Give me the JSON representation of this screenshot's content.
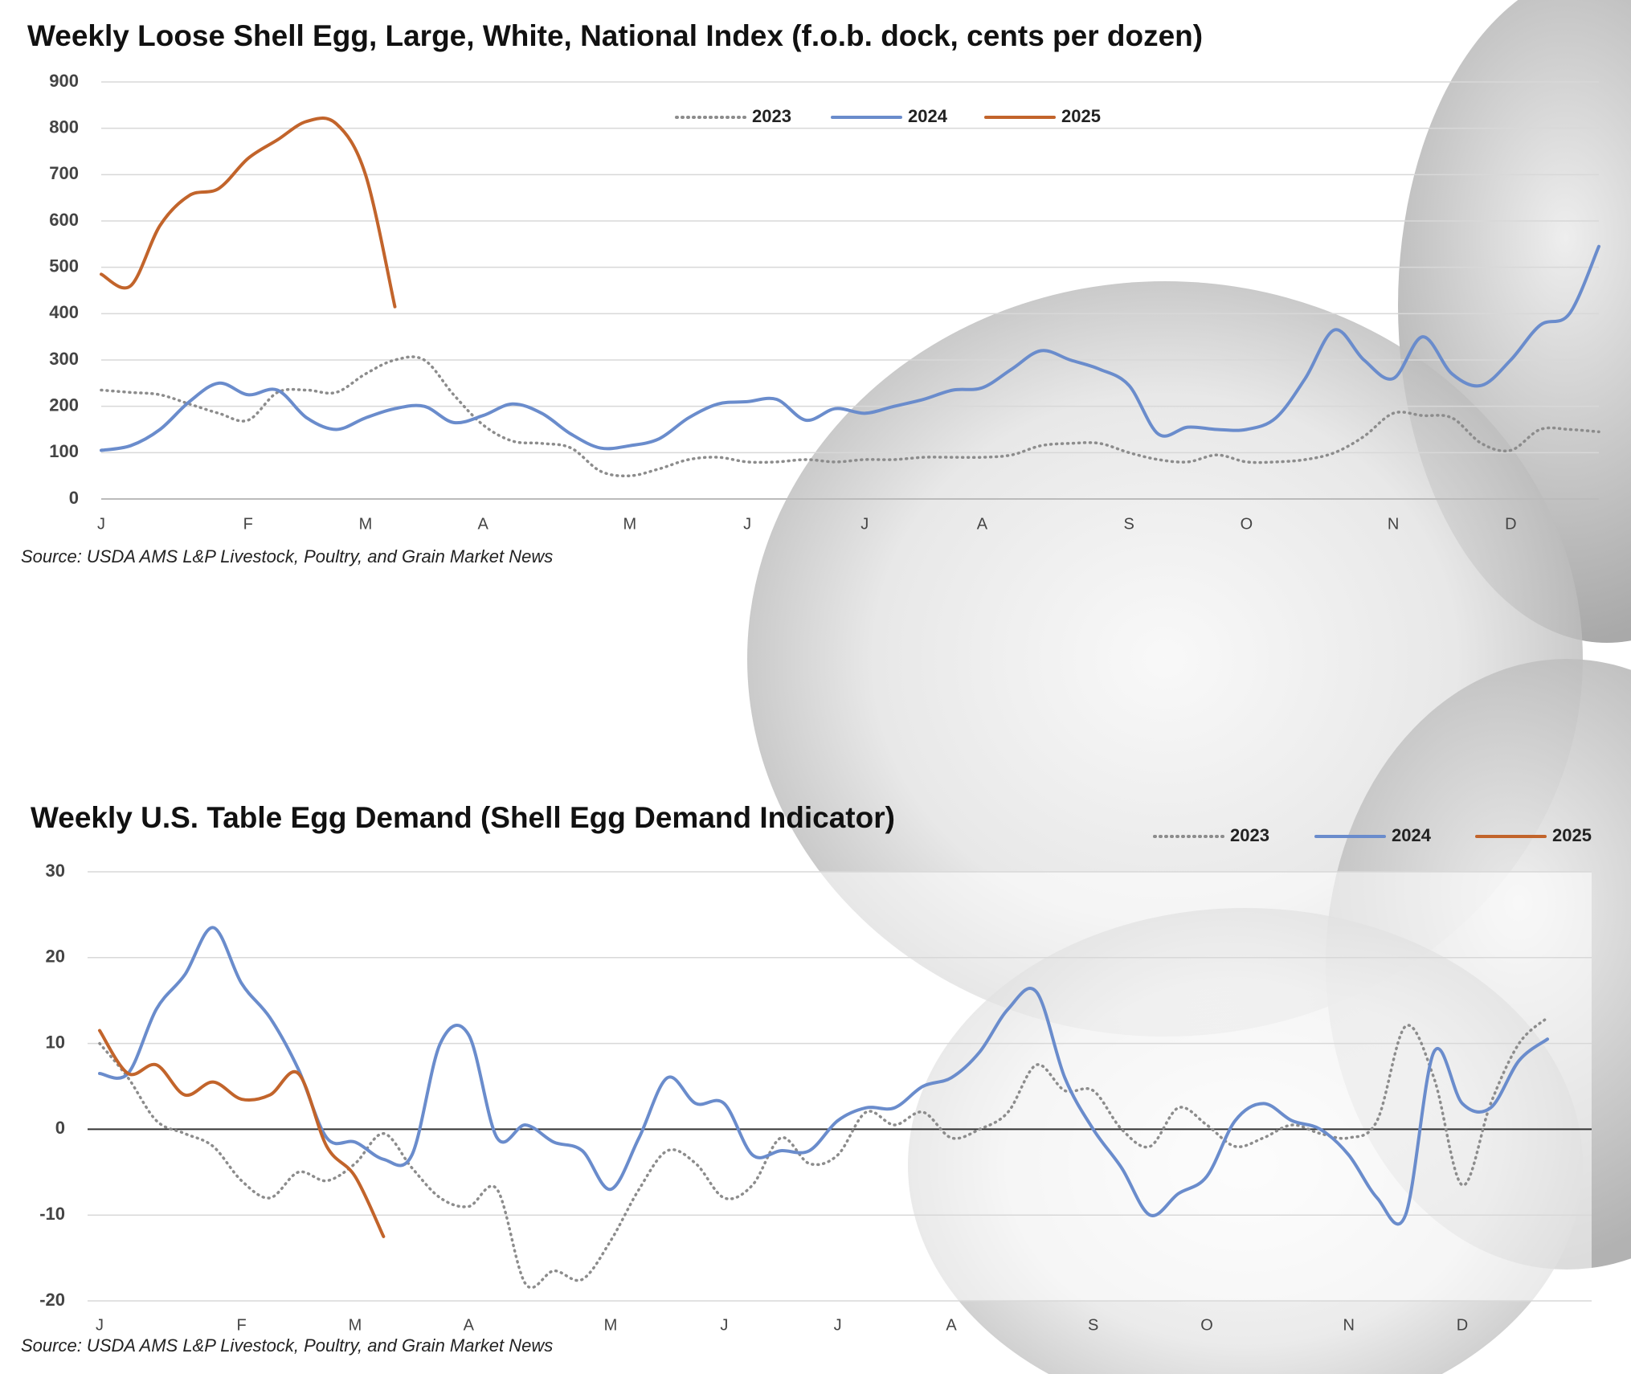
{
  "chart_data": [
    {
      "type": "line",
      "title": "Weekly Loose Shell Egg, Large, White, National Index (f.o.b. dock, cents per dozen)",
      "source": "Source: USDA AMS L&P Livestock, Poultry, and Grain Market News",
      "categories": [
        "J",
        null,
        null,
        null,
        null,
        "F",
        null,
        null,
        null,
        "M",
        null,
        null,
        null,
        "A",
        null,
        null,
        null,
        null,
        "M",
        null,
        null,
        null,
        "J",
        null,
        null,
        null,
        "J",
        null,
        null,
        null,
        "A",
        null,
        null,
        null,
        null,
        "S",
        null,
        null,
        null,
        "O",
        null,
        null,
        null,
        null,
        "N",
        null,
        null,
        null,
        "D",
        null,
        null,
        null
      ],
      "ylim": [
        0,
        900
      ],
      "yticks": [
        0,
        100,
        200,
        300,
        400,
        500,
        600,
        700,
        800,
        900
      ],
      "grid": true,
      "series": [
        {
          "name": "2023",
          "color": "#8c8c8c",
          "line_style": "dotted",
          "values": [
            235,
            230,
            225,
            205,
            185,
            170,
            230,
            235,
            230,
            270,
            300,
            300,
            225,
            160,
            125,
            120,
            110,
            60,
            50,
            65,
            85,
            90,
            80,
            80,
            85,
            80,
            85,
            85,
            90,
            90,
            90,
            95,
            115,
            120,
            120,
            100,
            85,
            80,
            95,
            80,
            80,
            85,
            100,
            135,
            185,
            180,
            175,
            120,
            105,
            150,
            150,
            145
          ]
        },
        {
          "name": "2024",
          "color": "#6a8ccc",
          "line_style": "solid",
          "values": [
            105,
            115,
            150,
            210,
            250,
            225,
            235,
            175,
            150,
            175,
            195,
            200,
            165,
            180,
            205,
            185,
            140,
            110,
            115,
            130,
            175,
            205,
            210,
            215,
            170,
            195,
            185,
            200,
            215,
            235,
            240,
            280,
            320,
            300,
            280,
            245,
            140,
            155,
            150,
            150,
            175,
            260,
            365,
            300,
            260,
            350,
            270,
            245,
            300,
            375,
            400,
            545
          ]
        },
        {
          "name": "2025",
          "color": "#c2642b",
          "line_style": "solid",
          "values": [
            485,
            460,
            590,
            655,
            670,
            735,
            775,
            815,
            810,
            700,
            415,
            null,
            null,
            null,
            null,
            null,
            null,
            null,
            null,
            null,
            null,
            null,
            null,
            null,
            null,
            null,
            null,
            null,
            null,
            null,
            null,
            null,
            null,
            null,
            null,
            null,
            null,
            null,
            null,
            null,
            null,
            null,
            null,
            null,
            null,
            null,
            null,
            null,
            null,
            null,
            null,
            null
          ]
        }
      ]
    },
    {
      "type": "line",
      "title": "Weekly U.S. Table Egg Demand (Shell Egg Demand Indicator)",
      "source": "Source: USDA AMS L&P Livestock, Poultry, and Grain Market News",
      "categories": [
        "J",
        null,
        null,
        null,
        null,
        "F",
        null,
        null,
        null,
        "M",
        null,
        null,
        null,
        "A",
        null,
        null,
        null,
        null,
        "M",
        null,
        null,
        null,
        "J",
        null,
        null,
        null,
        "J",
        null,
        null,
        null,
        "A",
        null,
        null,
        null,
        null,
        "S",
        null,
        null,
        null,
        "O",
        null,
        null,
        null,
        null,
        "N",
        null,
        null,
        null,
        "D",
        null,
        null,
        null
      ],
      "ylim": [
        -20,
        30
      ],
      "yticks": [
        -20,
        -10,
        0,
        10,
        20,
        30
      ],
      "grid": true,
      "series": [
        {
          "name": "2023",
          "color": "#8c8c8c",
          "line_style": "dotted",
          "values": [
            10,
            6,
            1,
            -0.5,
            -2,
            -6,
            -8,
            -5,
            -6,
            -4,
            -0.5,
            -4.5,
            -8,
            -9,
            -7,
            -18,
            -16.5,
            -17.5,
            -13,
            -7,
            -2.5,
            -4,
            -8,
            -6.5,
            -1,
            -4,
            -3,
            2,
            0.5,
            2,
            -1,
            0,
            2,
            7.5,
            4.5,
            4.5,
            0,
            -2,
            2.5,
            0.5,
            -2,
            -1,
            0.5,
            -0.5,
            -1,
            1,
            12,
            6,
            -6.5,
            3,
            10,
            13
          ]
        },
        {
          "name": "2024",
          "color": "#6a8ccc",
          "line_style": "solid",
          "values": [
            6.5,
            6.5,
            14,
            18,
            23.5,
            17,
            13,
            7,
            -1,
            -1.5,
            -3.5,
            -3,
            10,
            11,
            -1,
            0.5,
            -1.5,
            -2.5,
            -7,
            -1,
            6,
            3,
            3,
            -3,
            -2.5,
            -2.5,
            1,
            2.5,
            2.5,
            5,
            6,
            9,
            14,
            16,
            6,
            0,
            -4.5,
            -10,
            -7.5,
            -5.5,
            1,
            3,
            1,
            0,
            -3,
            -8,
            -10,
            9,
            3,
            2.5,
            8,
            10.5
          ]
        },
        {
          "name": "2025",
          "color": "#c2642b",
          "line_style": "solid",
          "values": [
            11.5,
            6.5,
            7.5,
            4,
            5.5,
            3.5,
            4,
            6.5,
            -2,
            -5.5,
            -12.5,
            null,
            null,
            null,
            null,
            null,
            null,
            null,
            null,
            null,
            null,
            null,
            null,
            null,
            null,
            null,
            null,
            null,
            null,
            null,
            null,
            null,
            null,
            null,
            null,
            null,
            null,
            null,
            null,
            null,
            null,
            null,
            null,
            null,
            null,
            null,
            null,
            null,
            null,
            null,
            null,
            null
          ]
        }
      ]
    }
  ]
}
